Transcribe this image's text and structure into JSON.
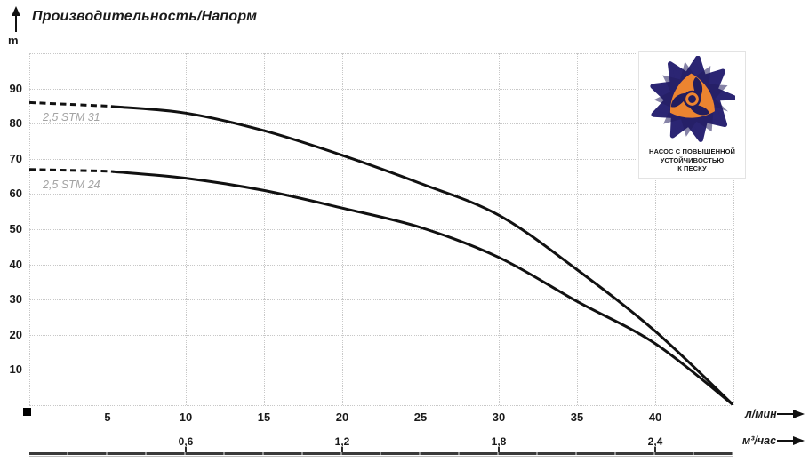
{
  "title": "Производительность/Напорм",
  "y_axis": {
    "unit_label": "m",
    "ticks": [
      "90",
      "80",
      "70",
      "60",
      "50",
      "40",
      "30",
      "20",
      "10"
    ],
    "tick_values": [
      90,
      80,
      70,
      60,
      50,
      40,
      30,
      20,
      10
    ]
  },
  "x_axis_primary": {
    "unit_label": "л/мин",
    "ticks": [
      "5",
      "10",
      "15",
      "20",
      "25",
      "30",
      "35",
      "40"
    ],
    "tick_values": [
      5,
      10,
      15,
      20,
      25,
      30,
      35,
      40
    ]
  },
  "x_axis_secondary": {
    "unit_label": "м³/час",
    "ticks": [
      "0,6",
      "1,2",
      "1,8",
      "2,4"
    ],
    "tick_positions_lmin": [
      10,
      20,
      30,
      40
    ]
  },
  "colors": {
    "curve": "#111111",
    "grid": "#c8c8c8",
    "series_label": "#a3a3a3",
    "axis_bar": "#3a3a3a",
    "logo_petal": "#2b2573",
    "logo_petal_dark": "#221d5e",
    "logo_accent": "#ec8430",
    "logo_text": "#232a68"
  },
  "logo": {
    "lines": [
      "НАСОС С ПОВЫШЕННОЙ",
      "УСТОЙЧИВОСТЬЮ",
      "К ПЕСКУ"
    ]
  },
  "chart_data": {
    "type": "line",
    "title": "Производительность/Напорм",
    "ylabel": "m",
    "xlabel_primary": "л/мин",
    "xlabel_secondary": "м³/час",
    "xlim_lmin": [
      0,
      45
    ],
    "ylim_m": [
      0,
      100
    ],
    "x_ticks_lmin": [
      5,
      10,
      15,
      20,
      25,
      30,
      35,
      40
    ],
    "x_ticks_m3h": [
      0.6,
      1.2,
      1.8,
      2.4
    ],
    "grid": true,
    "legend_position": "inline-left",
    "series": [
      {
        "name": "2,5 STM 31",
        "dash_until_lmin": 5.4,
        "points_lmin_m": [
          [
            0,
            86
          ],
          [
            5,
            85
          ],
          [
            10,
            83
          ],
          [
            15,
            78
          ],
          [
            20,
            71
          ],
          [
            25,
            63
          ],
          [
            30,
            54
          ],
          [
            35,
            38.5
          ],
          [
            40,
            21
          ],
          [
            45,
            0
          ]
        ]
      },
      {
        "name": "2,5 STM 24",
        "dash_until_lmin": 5.4,
        "points_lmin_m": [
          [
            0,
            67
          ],
          [
            5,
            66.5
          ],
          [
            10,
            64.5
          ],
          [
            15,
            61
          ],
          [
            20,
            56
          ],
          [
            25,
            50.5
          ],
          [
            30,
            42
          ],
          [
            35,
            29.5
          ],
          [
            40,
            17.5
          ],
          [
            45,
            0
          ]
        ]
      }
    ]
  }
}
